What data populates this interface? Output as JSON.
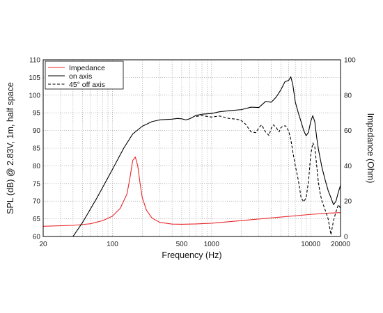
{
  "chart_data": {
    "type": "line",
    "xlabel": "Frequency (Hz)",
    "ylabel": "SPL (dB) @ 2.83V, 1m, half space",
    "y2label": "Impedance (Ohm)",
    "xscale": "log",
    "xlim": [
      20,
      20000
    ],
    "ylim": [
      60,
      110
    ],
    "y2lim": [
      0,
      100
    ],
    "grid": true,
    "legend_position": "top-left",
    "x_ticks": [
      "20",
      "100",
      "500",
      "1000",
      "10000",
      "20000"
    ],
    "y_ticks": [
      "60",
      "65",
      "70",
      "75",
      "80",
      "85",
      "90",
      "95",
      "100",
      "105",
      "110"
    ],
    "y2_ticks": [
      "0",
      "20",
      "40",
      "60",
      "80",
      "100"
    ],
    "legend": [
      "Impedance",
      "on axis",
      "45° off axis"
    ],
    "series": [
      {
        "name": "Impedance",
        "axis": "right",
        "color": "#e8262a",
        "dash": "solid",
        "x": [
          20,
          40,
          60,
          80,
          100,
          120,
          140,
          150,
          160,
          170,
          180,
          190,
          200,
          220,
          250,
          300,
          400,
          500,
          700,
          1000,
          2000,
          5000,
          10000,
          15000,
          20000
        ],
        "y": [
          5.8,
          6.3,
          7.2,
          9,
          11.5,
          16,
          24,
          33,
          43,
          45,
          40,
          30,
          22,
          15,
          10.5,
          8,
          7,
          6.9,
          7.1,
          7.5,
          9,
          11,
          12.5,
          13.2,
          13.5
        ]
      },
      {
        "name": "on axis",
        "axis": "left",
        "color": "#000000",
        "dash": "solid",
        "x": [
          40,
          50,
          70,
          100,
          130,
          160,
          200,
          250,
          300,
          400,
          450,
          500,
          550,
          600,
          700,
          800,
          1000,
          1200,
          1500,
          2000,
          2500,
          3000,
          3500,
          4000,
          4500,
          5000,
          5500,
          6000,
          6300,
          6600,
          7000,
          7500,
          8000,
          8500,
          9000,
          9500,
          10000,
          10500,
          11000,
          11500,
          12000,
          13000,
          14000,
          15000,
          16000,
          17000,
          18000,
          19000,
          20000
        ],
        "y": [
          60,
          64,
          71,
          79,
          85,
          89,
          91.2,
          92.5,
          93,
          93.2,
          93.4,
          93.3,
          93,
          93.3,
          94.3,
          94.6,
          94.8,
          95.3,
          95.6,
          95.9,
          96.6,
          96.5,
          98.2,
          98,
          99.5,
          101.5,
          103.8,
          104.2,
          105.2,
          103,
          98,
          95,
          92.5,
          90,
          88.5,
          89.5,
          92.5,
          94.2,
          92.5,
          88,
          84.5,
          79.5,
          76,
          73,
          71,
          69,
          70,
          72.5,
          74.5
        ]
      },
      {
        "name": "45° off axis",
        "axis": "left",
        "color": "#000000",
        "dash": "dashed",
        "x": [
          700,
          800,
          1000,
          1200,
          1500,
          1800,
          2000,
          2200,
          2500,
          2800,
          3000,
          3200,
          3500,
          3800,
          4000,
          4200,
          4500,
          4800,
          5000,
          5300,
          5600,
          6000,
          6300,
          6600,
          7000,
          7500,
          8000,
          8500,
          9000,
          9500,
          10000,
          10500,
          11000,
          11500,
          12000,
          12500,
          13000,
          14000,
          15000,
          16000,
          17000,
          18000,
          19000,
          20000
        ],
        "y": [
          94,
          94.2,
          93.8,
          94.1,
          93.4,
          93.2,
          92.8,
          91.8,
          89.6,
          89.4,
          90.8,
          91.6,
          89.6,
          88.6,
          90.6,
          91.6,
          90.8,
          89.6,
          90.8,
          91.3,
          91.3,
          89.8,
          87.5,
          84,
          80,
          76,
          71,
          69.8,
          71,
          75.5,
          83,
          86.5,
          85.5,
          80,
          75,
          72,
          70,
          67.5,
          65,
          60.5,
          64.5,
          67,
          69,
          68
        ]
      }
    ]
  }
}
